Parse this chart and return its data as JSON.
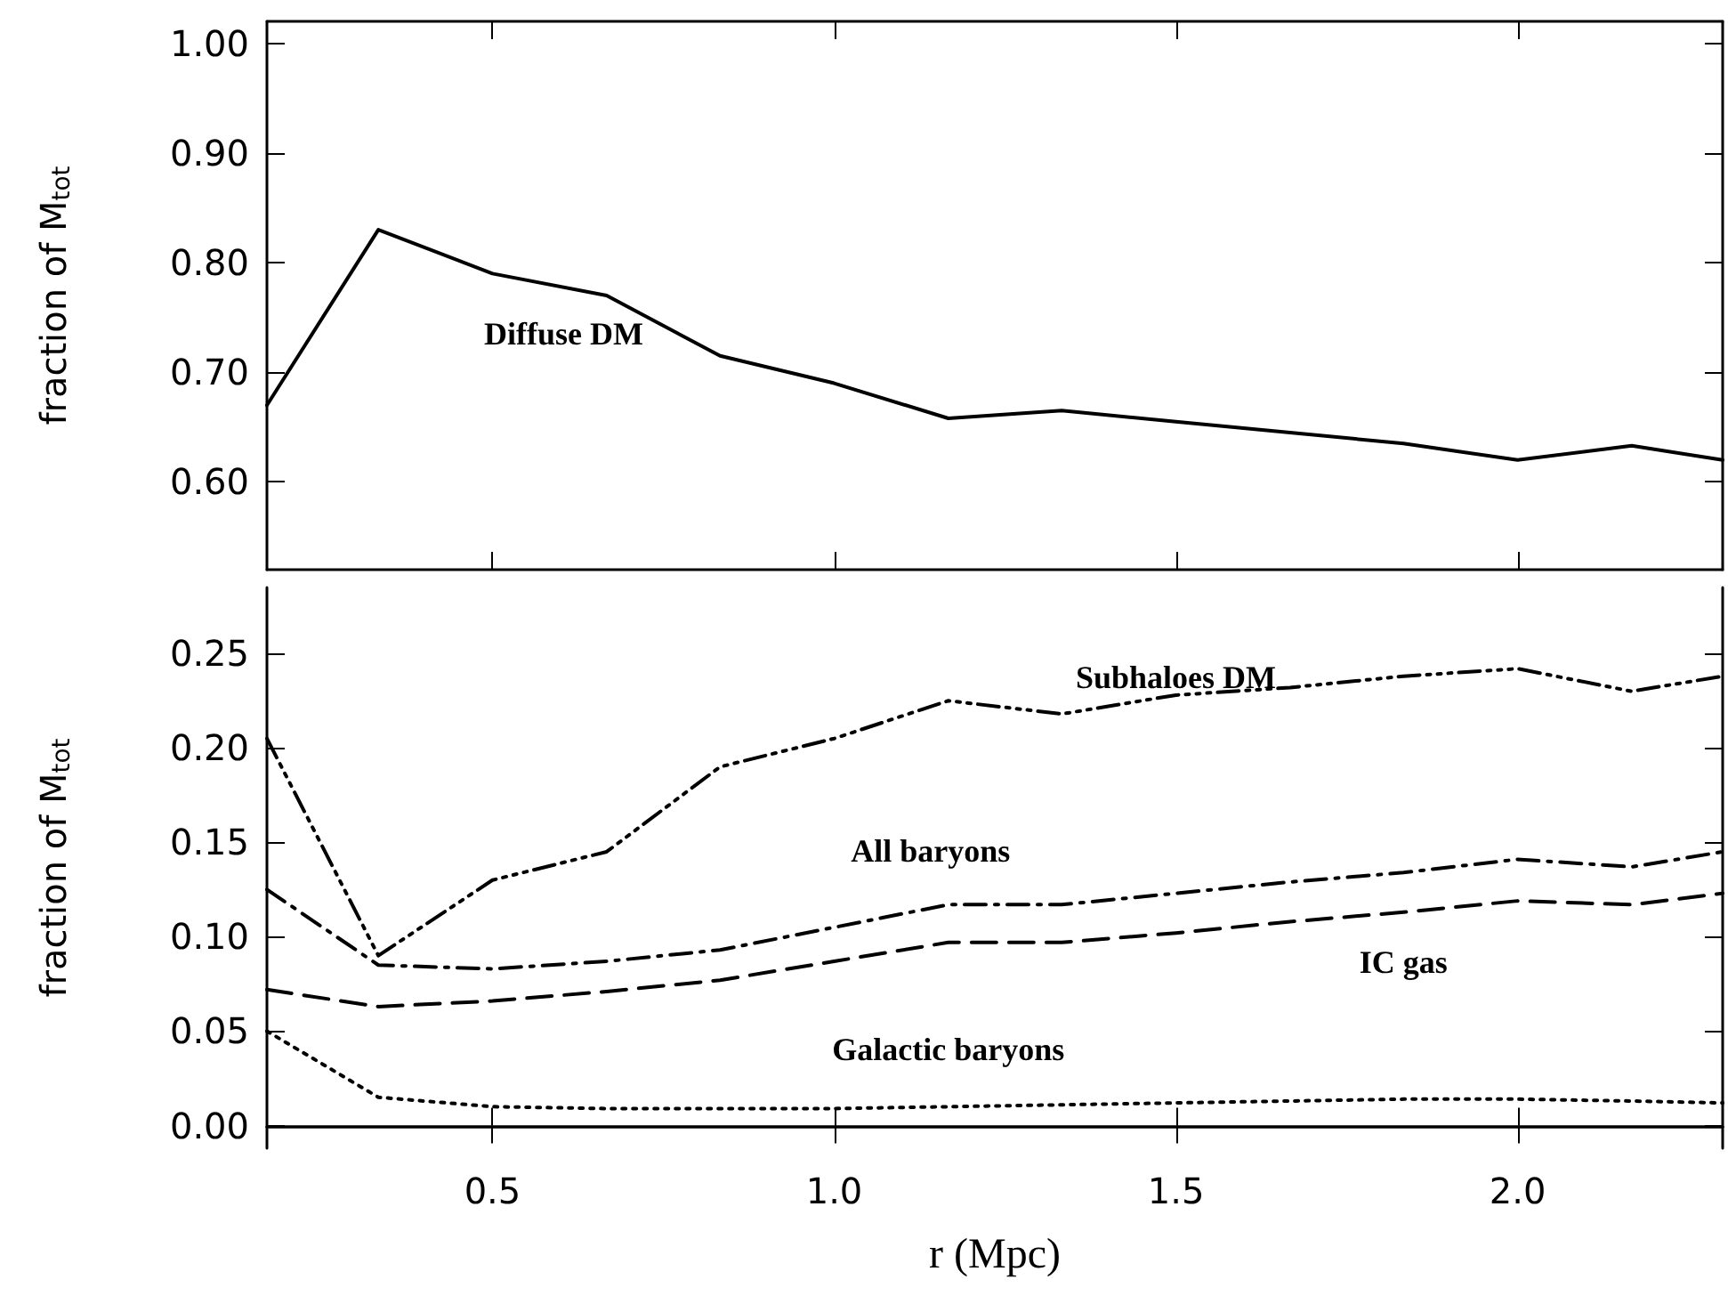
{
  "chart_data": [
    {
      "type": "line",
      "ylabel": "fraction of M$_{tot}$",
      "tick_labels": "y",
      "line_style": "solid",
      "x": [
        0.17,
        0.333,
        0.5,
        0.667,
        0.833,
        1.0,
        1.167,
        1.333,
        1.5,
        1.667,
        1.833,
        2.0,
        2.167,
        2.3
      ],
      "xlim": [
        0.17,
        2.3
      ],
      "xticks": [
        0.5,
        1,
        1.5,
        2
      ],
      "ylim": [
        0.52,
        1.02
      ],
      "yticks": [
        {
          "value": 0.6,
          "label": "0.60"
        },
        {
          "value": 0.7,
          "label": "0.70"
        },
        {
          "value": 0.8,
          "label": "0.80"
        },
        {
          "value": 0.9,
          "label": "0.90"
        },
        {
          "value": 1.0,
          "label": "1.00"
        }
      ],
      "grid": false,
      "legend": false,
      "series": [
        {
          "name": "Diffuse DM",
          "color": "#000000",
          "values": [
            0.67,
            0.83,
            0.79,
            0.77,
            0.715,
            0.69,
            0.658,
            0.665,
            0.655,
            0.645,
            0.635,
            0.62,
            0.633,
            0.62
          ]
        }
      ]
    },
    {
      "type": "line",
      "xlabel": "r (Mpc)",
      "ylabel": "fraction of M$_{tot}$",
      "x": [
        0.17,
        0.333,
        0.5,
        0.667,
        0.833,
        1.0,
        1.167,
        1.333,
        1.5,
        1.667,
        1.833,
        2.0,
        2.167,
        2.3
      ],
      "xlim": [
        0.17,
        2.3
      ],
      "xticks": [
        {
          "value": 0.5,
          "label": "0.5"
        },
        {
          "value": 1.0,
          "label": "1.0"
        },
        {
          "value": 1.5,
          "label": "1.5"
        },
        {
          "value": 2.0,
          "label": "2.0"
        }
      ],
      "ylim": [
        -0.012,
        0.285
      ],
      "yticks": [
        {
          "value": 0,
          "label": "0.00"
        },
        {
          "value": 0.05,
          "label": "0.05"
        },
        {
          "value": 0.1,
          "label": "0.10"
        },
        {
          "value": 0.15,
          "label": "0.15"
        },
        {
          "value": 0.2,
          "label": "0.20"
        },
        {
          "value": 0.25,
          "label": "0.25"
        }
      ],
      "grid": false,
      "legend": false,
      "series": [
        {
          "name": "Subhaloes DM",
          "color": "#000000",
          "line_style": "dashdotdot",
          "values": [
            0.205,
            0.09,
            0.13,
            0.145,
            0.19,
            0.205,
            0.225,
            0.218,
            0.228,
            0.232,
            0.238,
            0.242,
            0.23,
            0.238
          ]
        },
        {
          "name": "All baryons",
          "color": "#000000",
          "line_style": "dashdot",
          "values": [
            0.125,
            0.085,
            0.083,
            0.087,
            0.093,
            0.105,
            0.117,
            0.117,
            0.123,
            0.129,
            0.134,
            0.141,
            0.137,
            0.145
          ]
        },
        {
          "name": "IC gas",
          "color": "#000000",
          "line_style": "dashed",
          "values": [
            0.072,
            0.063,
            0.066,
            0.071,
            0.077,
            0.087,
            0.097,
            0.097,
            0.102,
            0.108,
            0.113,
            0.119,
            0.117,
            0.123
          ]
        },
        {
          "name": "Galactic baryons",
          "color": "#000000",
          "line_style": "dotted",
          "values": [
            0.05,
            0.015,
            0.01,
            0.009,
            0.009,
            0.009,
            0.01,
            0.011,
            0.012,
            0.013,
            0.014,
            0.014,
            0.013,
            0.012
          ]
        }
      ]
    }
  ]
}
